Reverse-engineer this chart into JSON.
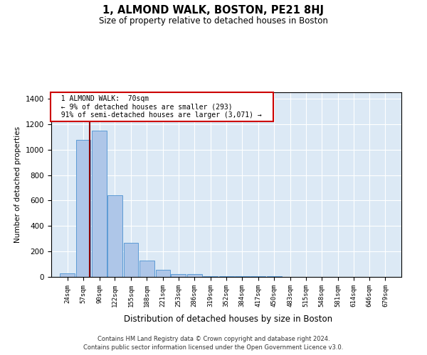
{
  "title": "1, ALMOND WALK, BOSTON, PE21 8HJ",
  "subtitle": "Size of property relative to detached houses in Boston",
  "xlabel": "Distribution of detached houses by size in Boston",
  "ylabel": "Number of detached properties",
  "footer_line1": "Contains HM Land Registry data © Crown copyright and database right 2024.",
  "footer_line2": "Contains public sector information licensed under the Open Government Licence v3.0.",
  "annotation_line1": "1 ALMOND WALK:  70sqm",
  "annotation_line2": "← 9% of detached houses are smaller (293)",
  "annotation_line3": "91% of semi-detached houses are larger (3,071) →",
  "property_sqm": 70,
  "bins": [
    24,
    57,
    90,
    122,
    155,
    188,
    221,
    253,
    286,
    319,
    352,
    384,
    417,
    450,
    483,
    515,
    548,
    581,
    614,
    646,
    679
  ],
  "counts": [
    30,
    1075,
    1150,
    640,
    270,
    130,
    55,
    20,
    20,
    5,
    5,
    5,
    5,
    5,
    0,
    0,
    0,
    0,
    0,
    0
  ],
  "bar_color": "#aec6e8",
  "bar_edge_color": "#5b9bd5",
  "property_line_color": "#8b0000",
  "background_color": "#dce9f5",
  "ylim": [
    0,
    1450
  ],
  "yticks": [
    0,
    200,
    400,
    600,
    800,
    1000,
    1200,
    1400
  ]
}
